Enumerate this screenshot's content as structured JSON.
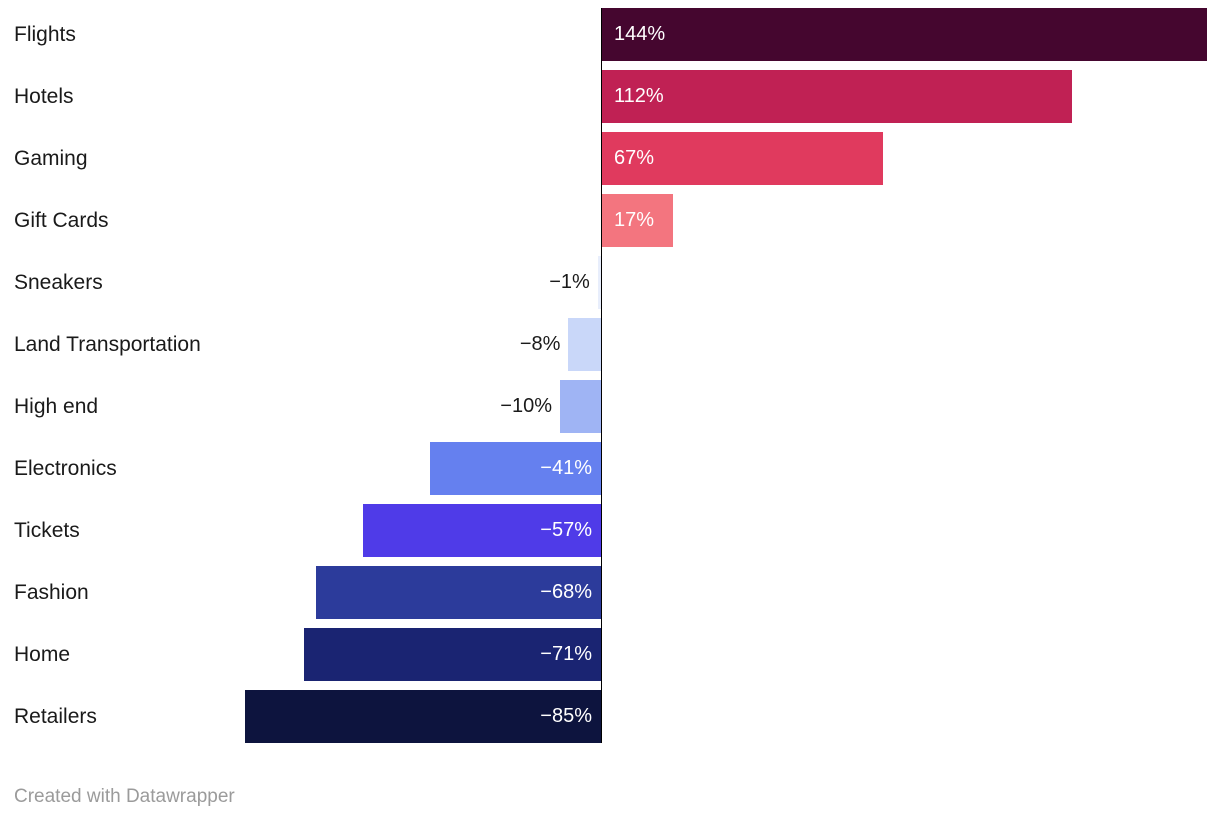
{
  "chart_data": {
    "type": "bar",
    "orientation": "horizontal",
    "categories": [
      "Flights",
      "Hotels",
      "Gaming",
      "Gift Cards",
      "Sneakers",
      "Land Transportation",
      "High end",
      "Electronics",
      "Tickets",
      "Fashion",
      "Home",
      "Retailers"
    ],
    "values": [
      144,
      112,
      67,
      17,
      -1,
      -8,
      -10,
      -41,
      -57,
      -68,
      -71,
      -85
    ],
    "value_labels": [
      "144%",
      "112%",
      "67%",
      "17%",
      "−1%",
      "−8%",
      "−10%",
      "−41%",
      "−57%",
      "−68%",
      "−71%",
      "−85%"
    ],
    "bar_colors": [
      "#45062f",
      "#c02154",
      "#e03a5e",
      "#f3757f",
      "#e8eefc",
      "#c9d7f9",
      "#9fb4f4",
      "#6580ef",
      "#4f3be8",
      "#2c3b9b",
      "#1a2472",
      "#0d143e"
    ],
    "title": "",
    "xlabel": "",
    "ylabel": "",
    "xlim": [
      -85,
      147
    ],
    "grid": false,
    "legend": "none",
    "baseline_value": 0
  },
  "colors": {
    "positive_label": "#ffffff",
    "negative_inside_label": "#ffffff",
    "outside_label": "#1a1a1a",
    "baseline": "#000000"
  },
  "footer": {
    "credit": "Created with Datawrapper"
  }
}
